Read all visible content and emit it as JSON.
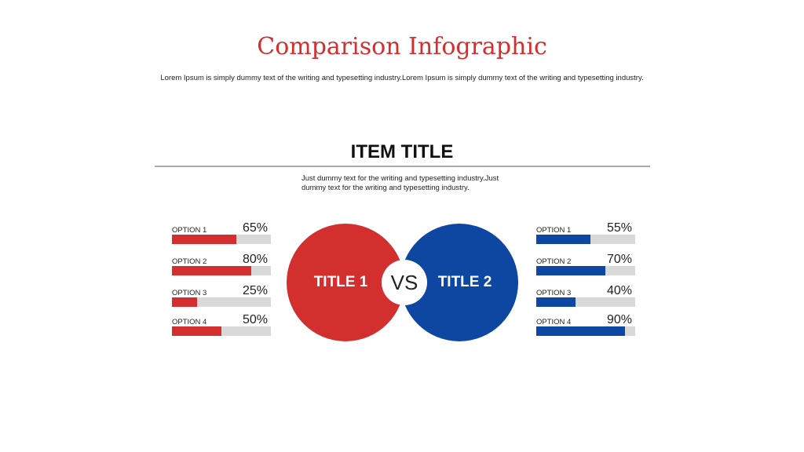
{
  "header": {
    "title": "Comparison Infographic",
    "subtitle": "Lorem Ipsum is simply dummy text of the writing and typesetting industry.Lorem Ipsum is simply dummy text of the writing and typesetting industry."
  },
  "item": {
    "title": "ITEM TITLE",
    "description": "Just dummy text for the writing and typesetting industry.Just dummy text for the writing and typesetting industry."
  },
  "colors": {
    "left": "#d32f2f",
    "right": "#0d47a1",
    "track": "#d9d9d9"
  },
  "left": {
    "title": "TITLE 1",
    "options": [
      {
        "label": "OPTION 1",
        "value": "65%",
        "fraction": 0.65
      },
      {
        "label": "OPTION 2",
        "value": "80%",
        "fraction": 0.8
      },
      {
        "label": "OPTION 3",
        "value": "25%",
        "fraction": 0.25
      },
      {
        "label": "OPTION 4",
        "value": "50%",
        "fraction": 0.5
      }
    ]
  },
  "right": {
    "title": "TITLE 2",
    "options": [
      {
        "label": "OPTION 1",
        "value": "55%",
        "fraction": 0.55
      },
      {
        "label": "OPTION 2",
        "value": "70%",
        "fraction": 0.7
      },
      {
        "label": "OPTION 3",
        "value": "40%",
        "fraction": 0.4
      },
      {
        "label": "OPTION 4",
        "value": "90%",
        "fraction": 0.9
      }
    ]
  },
  "vs_label": "VS"
}
